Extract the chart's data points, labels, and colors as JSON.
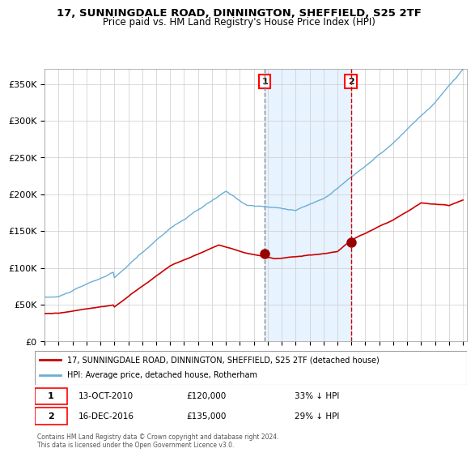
{
  "title": "17, SUNNINGDALE ROAD, DINNINGTON, SHEFFIELD, S25 2TF",
  "subtitle": "Price paid vs. HM Land Registry's House Price Index (HPI)",
  "legend_line1": "17, SUNNINGDALE ROAD, DINNINGTON, SHEFFIELD, S25 2TF (detached house)",
  "legend_line2": "HPI: Average price, detached house, Rotherham",
  "note1_label": "1",
  "note1_date": "13-OCT-2010",
  "note1_price": "£120,000",
  "note1_hpi": "33% ↓ HPI",
  "note2_label": "2",
  "note2_date": "16-DEC-2016",
  "note2_price": "£135,000",
  "note2_hpi": "29% ↓ HPI",
  "copyright": "Contains HM Land Registry data © Crown copyright and database right 2024.\nThis data is licensed under the Open Government Licence v3.0.",
  "hpi_color": "#6baed6",
  "price_color": "#cc0000",
  "marker_color": "#990000",
  "vline1_color": "#888888",
  "vline2_color": "#cc0000",
  "shade_color": "#ddeeff",
  "ylim": [
    0,
    370000
  ],
  "yticks": [
    0,
    50000,
    100000,
    150000,
    200000,
    250000,
    300000,
    350000
  ],
  "ytick_labels": [
    "£0",
    "£50K",
    "£100K",
    "£150K",
    "£200K",
    "£250K",
    "£300K",
    "£350K"
  ],
  "xstart_year": 1995,
  "xend_year": 2025,
  "event1_year": 2010.79,
  "event2_year": 2016.96,
  "event1_price": 120000,
  "event2_price": 135000
}
